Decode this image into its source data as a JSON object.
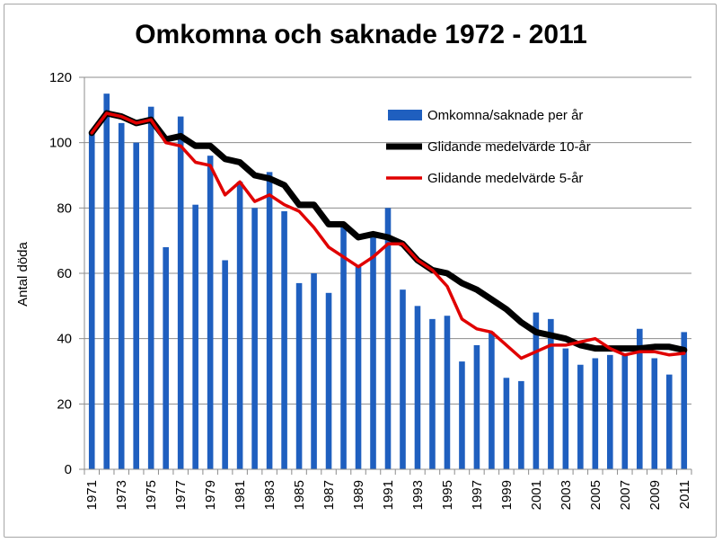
{
  "chart_data": {
    "type": "bar",
    "title": "Omkomna och saknade 1972 - 2011",
    "ylabel": "Antal döda",
    "xlabel": "",
    "ylim": [
      0,
      120
    ],
    "yticks": [
      0,
      20,
      40,
      60,
      80,
      100,
      120
    ],
    "grid": true,
    "legend_position": "top-right",
    "x": [
      1971,
      1972,
      1973,
      1974,
      1975,
      1976,
      1977,
      1978,
      1979,
      1980,
      1981,
      1982,
      1983,
      1984,
      1985,
      1986,
      1987,
      1988,
      1989,
      1990,
      1991,
      1992,
      1993,
      1994,
      1995,
      1996,
      1997,
      1998,
      1999,
      2000,
      2001,
      2002,
      2003,
      2004,
      2005,
      2006,
      2007,
      2008,
      2009,
      2010,
      2011
    ],
    "x_tick_labels": [
      "1971",
      "1973",
      "1975",
      "1977",
      "1979",
      "1981",
      "1983",
      "1985",
      "1987",
      "1989",
      "1991",
      "1993",
      "1995",
      "1997",
      "1999",
      "2001",
      "2003",
      "2005",
      "2007",
      "2009",
      "2011"
    ],
    "series": [
      {
        "name": "Omkomna/saknade per år",
        "kind": "bar",
        "color": "#1f5fbf",
        "values": [
          103,
          115,
          106,
          100,
          111,
          68,
          108,
          81,
          96,
          64,
          88,
          80,
          91,
          79,
          57,
          60,
          54,
          75,
          62,
          71,
          80,
          55,
          50,
          46,
          47,
          33,
          38,
          42,
          28,
          27,
          48,
          46,
          37,
          32,
          34,
          35,
          35,
          43,
          34,
          29,
          42
        ]
      },
      {
        "name": "Glidande medelvärde 10-år",
        "kind": "line",
        "color": "#000000",
        "values": [
          103,
          109,
          108,
          106,
          107,
          101,
          102,
          99,
          99,
          95,
          94,
          90,
          89,
          87,
          81,
          81,
          75,
          75,
          71,
          72,
          71,
          69,
          64,
          61,
          60,
          57,
          55,
          52,
          49,
          45,
          42,
          41,
          40,
          38,
          37,
          37,
          37,
          37,
          37.5,
          37.5,
          36.5
        ]
      },
      {
        "name": "Glidande medelvärde 5-år",
        "kind": "line",
        "color": "#e00000",
        "values": [
          103,
          109,
          108,
          106,
          107,
          100,
          99,
          94,
          93,
          84,
          88,
          82,
          84,
          81,
          79,
          74,
          68,
          65,
          62,
          65,
          69,
          69,
          64,
          61,
          56,
          46,
          43,
          42,
          38,
          34,
          36,
          38,
          38,
          39,
          40,
          37,
          35,
          36,
          36,
          35,
          35.5
        ]
      }
    ]
  }
}
